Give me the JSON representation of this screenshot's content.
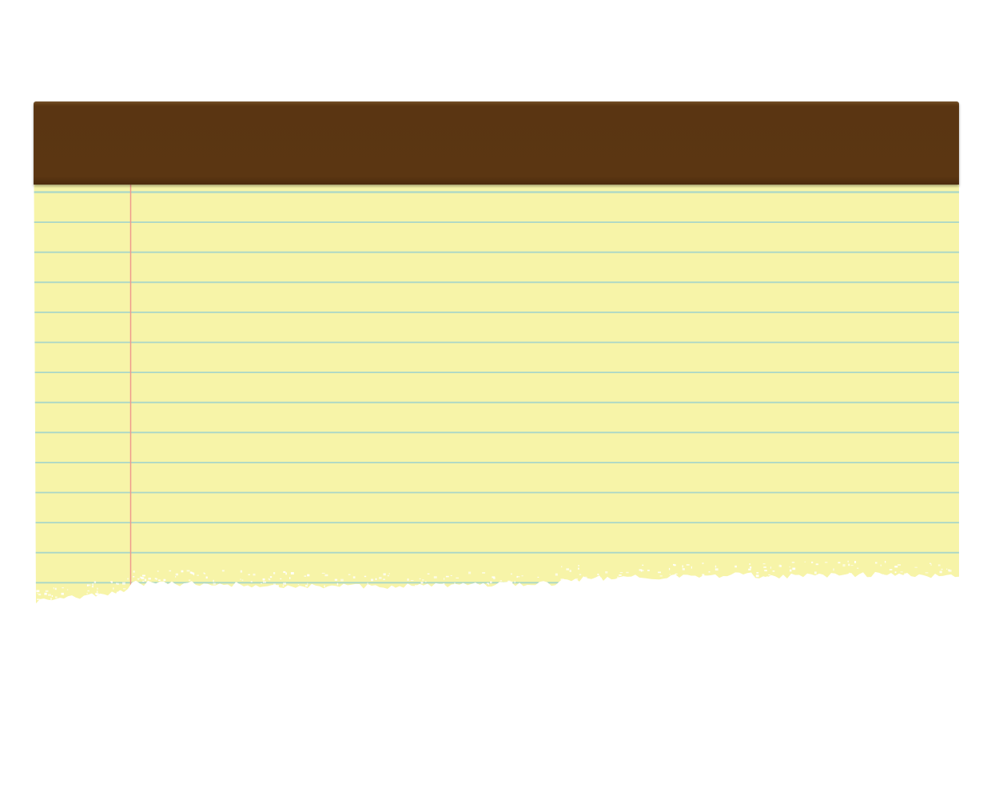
{
  "notepad": {
    "binding_color": "#5a3512",
    "paper_color": "#f7f4a8",
    "rule_color": "#a9d6c7",
    "margin_line_color": "#ef9a8c",
    "rule_count": 14
  }
}
